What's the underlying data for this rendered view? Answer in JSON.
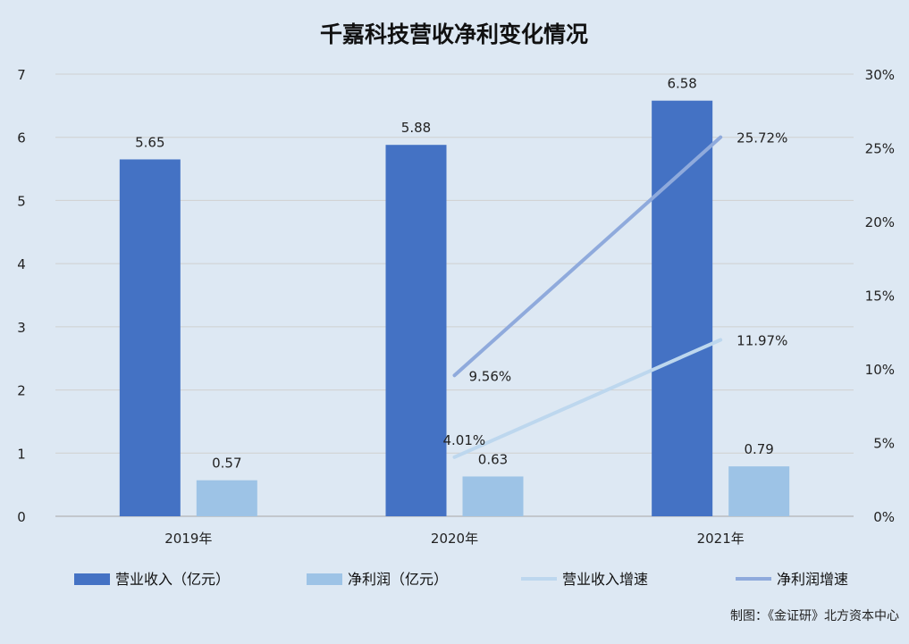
{
  "chart_data": {
    "type": "bar",
    "title": "千嘉科技营收净利变化情况",
    "categories": [
      "2019年",
      "2020年",
      "2021年"
    ],
    "y_left": {
      "min": 0,
      "max": 7,
      "ticks": [
        "0",
        "1",
        "2",
        "3",
        "4",
        "5",
        "6",
        "7"
      ]
    },
    "y_right": {
      "min": 0,
      "max": 30,
      "ticks": [
        "0%",
        "5%",
        "10%",
        "15%",
        "20%",
        "25%",
        "30%"
      ]
    },
    "grid": true,
    "legend_position": "bottom",
    "series": [
      {
        "name": "营业收入（亿元）",
        "kind": "bar",
        "axis": "left",
        "color": "#4472c4",
        "values": [
          5.65,
          5.88,
          6.58
        ],
        "labels": [
          "5.65",
          "5.88",
          "6.58"
        ]
      },
      {
        "name": "净利润（亿元）",
        "kind": "bar",
        "axis": "left",
        "color": "#9dc3e6",
        "values": [
          0.57,
          0.63,
          0.79
        ],
        "labels": [
          "0.57",
          "0.63",
          "0.79"
        ]
      },
      {
        "name": "营业收入增速",
        "kind": "line",
        "axis": "right",
        "color": "#bdd7ee",
        "values": [
          null,
          4.01,
          11.97
        ],
        "labels": [
          "",
          "4.01%",
          "11.97%"
        ]
      },
      {
        "name": "净利润增速",
        "kind": "line",
        "axis": "right",
        "color": "#8faadc",
        "values": [
          null,
          9.56,
          25.72
        ],
        "labels": [
          "",
          "9.56%",
          "25.72%"
        ]
      }
    ]
  },
  "credit": "制图：《金证研》北方资本中心"
}
